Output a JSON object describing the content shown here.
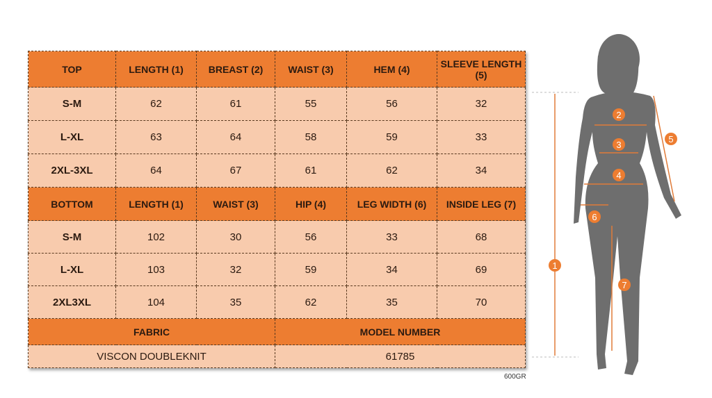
{
  "top": {
    "headers": [
      "TOP",
      "LENGTH (1)",
      "BREAST (2)",
      "WAIST (3)",
      "HEM (4)",
      "SLEEVE LENGTH (5)"
    ],
    "rows": [
      [
        "S-M",
        "62",
        "61",
        "55",
        "56",
        "32"
      ],
      [
        "L-XL",
        "63",
        "64",
        "58",
        "59",
        "33"
      ],
      [
        "2XL-3XL",
        "64",
        "67",
        "61",
        "62",
        "34"
      ]
    ]
  },
  "bottom": {
    "headers": [
      "BOTTOM",
      "LENGTH (1)",
      "WAIST (3)",
      "HIP (4)",
      "LEG WIDTH (6)",
      "INSIDE LEG (7)"
    ],
    "rows": [
      [
        "S-M",
        "102",
        "30",
        "56",
        "33",
        "68"
      ],
      [
        "L-XL",
        "103",
        "32",
        "59",
        "34",
        "69"
      ],
      [
        "2XL3XL",
        "104",
        "35",
        "62",
        "35",
        "70"
      ]
    ]
  },
  "info": {
    "fabric_label": "FABRIC",
    "model_label": "MODEL NUMBER",
    "fabric": "VISCON DOUBLEKNIT",
    "model": "61785"
  },
  "note": "600GR",
  "markers": [
    "1",
    "2",
    "3",
    "4",
    "5",
    "6",
    "7"
  ],
  "colors": {
    "header": "#ed7d31",
    "cell": "#f8cbad",
    "figure": "#6e6e6e"
  }
}
